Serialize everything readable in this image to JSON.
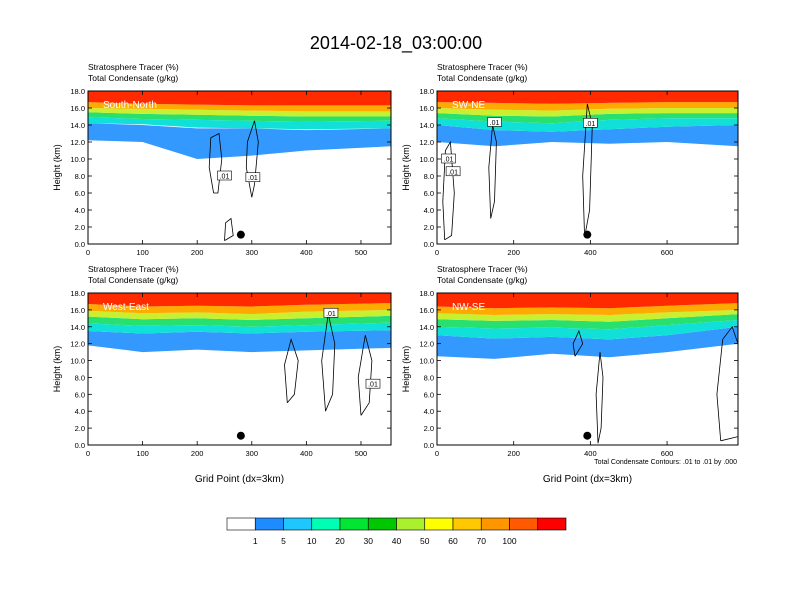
{
  "figure": {
    "title": "2014-02-18_03:00:00",
    "footnote": "Total Condensate Contours: .01 to .01 by .000",
    "ylabel": "Height (km)",
    "xlabel": "Grid Point (dx=3km)"
  },
  "chart_data": [
    {
      "type": "heatmap",
      "panel": "South-North",
      "subtitle_1": "Stratosphere Tracer   (%)",
      "subtitle_2": "Total Condensate   (g/kg)",
      "ylabel": "Height (km)",
      "xlabel": "",
      "xlim": [
        0,
        555
      ],
      "ylim": [
        0,
        18
      ],
      "xticks": [
        0,
        100,
        200,
        300,
        400,
        500
      ],
      "yticks": [
        "0.0",
        "2.0",
        "4.0",
        "6.0",
        "8.0",
        "10.0",
        "12.0",
        "14.0",
        "16.0",
        "18.0"
      ],
      "tracer_layers": [
        {
          "level": 1,
          "x": [
            0,
            100,
            200,
            300,
            400,
            555
          ],
          "bottom": [
            12.2,
            12.0,
            10.0,
            10.4,
            11.0,
            11.5
          ],
          "top": [
            14.2,
            14.0,
            13.6,
            13.6,
            13.4,
            13.6
          ]
        },
        {
          "level": 10,
          "x": [
            0,
            100,
            200,
            300,
            400,
            555
          ],
          "bottom": [
            14.2,
            14.1,
            13.7,
            13.6,
            13.5,
            13.6
          ],
          "top": [
            14.9,
            14.7,
            14.6,
            14.5,
            14.4,
            14.5
          ]
        },
        {
          "level": 30,
          "x": [
            0,
            100,
            200,
            300,
            400,
            555
          ],
          "bottom": [
            14.9,
            14.7,
            14.6,
            14.5,
            14.4,
            14.5
          ],
          "top": [
            15.5,
            15.3,
            15.2,
            15.1,
            15.0,
            15.0
          ]
        },
        {
          "level": 50,
          "x": [
            0,
            100,
            200,
            300,
            400,
            555
          ],
          "bottom": [
            15.5,
            15.3,
            15.2,
            15.1,
            15.0,
            15.0
          ],
          "top": [
            16.0,
            15.9,
            15.8,
            15.7,
            15.6,
            15.6
          ]
        },
        {
          "level": 70,
          "x": [
            0,
            100,
            200,
            300,
            400,
            555
          ],
          "bottom": [
            16.0,
            15.9,
            15.8,
            15.7,
            15.6,
            15.6
          ],
          "top": [
            16.7,
            16.5,
            16.4,
            16.3,
            16.3,
            16.3
          ]
        },
        {
          "level": 100,
          "x": [
            0,
            100,
            200,
            300,
            400,
            555
          ],
          "bottom": [
            16.7,
            16.5,
            16.4,
            16.3,
            16.3,
            16.3
          ],
          "top": [
            18.0,
            18.0,
            18.0,
            18.0,
            18.0,
            18.0
          ]
        }
      ],
      "condensate_contours": [
        [
          [
            230,
            6.0
          ],
          [
            222,
            9.0
          ],
          [
            225,
            12.5
          ],
          [
            240,
            13.0
          ],
          [
            245,
            10.0
          ],
          [
            238,
            6.0
          ],
          [
            230,
            6.0
          ]
        ],
        [
          [
            300,
            5.5
          ],
          [
            290,
            9.0
          ],
          [
            292,
            12.0
          ],
          [
            305,
            14.5
          ],
          [
            312,
            12.0
          ],
          [
            305,
            7.0
          ],
          [
            300,
            5.5
          ]
        ],
        [
          [
            250,
            0.4
          ],
          [
            252,
            2.5
          ],
          [
            262,
            3.0
          ],
          [
            266,
            1.0
          ],
          [
            250,
            0.4
          ]
        ]
      ],
      "contour_labels": [
        {
          "x": 250,
          "y": 8.0,
          "text": ".01"
        },
        {
          "x": 302,
          "y": 7.8,
          "text": ".01"
        }
      ],
      "marker": {
        "x": 280,
        "y": 1.1
      }
    },
    {
      "type": "heatmap",
      "panel": "SW-NE",
      "subtitle_1": "Stratosphere Tracer   (%)",
      "subtitle_2": "Total Condensate   (g/kg)",
      "ylabel": "Height (km)",
      "xlabel": "",
      "xlim": [
        0,
        785
      ],
      "ylim": [
        0,
        18
      ],
      "xticks": [
        0,
        200,
        400,
        600
      ],
      "yticks": [
        "0.0",
        "2.0",
        "4.0",
        "6.0",
        "8.0",
        "10.0",
        "12.0",
        "14.0",
        "16.0",
        "18.0"
      ],
      "tracer_layers": [
        {
          "level": 1,
          "x": [
            0,
            150,
            300,
            450,
            600,
            785
          ],
          "bottom": [
            12.0,
            11.5,
            12.0,
            11.8,
            12.0,
            11.5
          ],
          "top": [
            14.0,
            13.4,
            13.2,
            13.5,
            13.8,
            14.0
          ]
        },
        {
          "level": 10,
          "x": [
            0,
            150,
            300,
            450,
            600,
            785
          ],
          "bottom": [
            14.0,
            13.4,
            13.2,
            13.5,
            13.8,
            14.0
          ],
          "top": [
            14.8,
            14.4,
            14.2,
            14.6,
            14.8,
            14.8
          ]
        },
        {
          "level": 30,
          "x": [
            0,
            150,
            300,
            450,
            600,
            785
          ],
          "bottom": [
            14.8,
            14.4,
            14.2,
            14.6,
            14.8,
            14.8
          ],
          "top": [
            15.4,
            15.1,
            15.0,
            15.3,
            15.4,
            15.4
          ]
        },
        {
          "level": 50,
          "x": [
            0,
            150,
            300,
            450,
            600,
            785
          ],
          "bottom": [
            15.4,
            15.1,
            15.0,
            15.3,
            15.4,
            15.4
          ],
          "top": [
            16.0,
            15.8,
            15.7,
            15.9,
            16.0,
            16.0
          ]
        },
        {
          "level": 70,
          "x": [
            0,
            150,
            300,
            450,
            600,
            785
          ],
          "bottom": [
            16.0,
            15.8,
            15.7,
            15.9,
            16.0,
            16.0
          ],
          "top": [
            16.7,
            16.6,
            16.5,
            16.6,
            16.7,
            16.7
          ]
        },
        {
          "level": 100,
          "x": [
            0,
            150,
            300,
            450,
            600,
            785
          ],
          "bottom": [
            16.7,
            16.6,
            16.5,
            16.6,
            16.7,
            16.7
          ],
          "top": [
            18.0,
            18.0,
            18.0,
            18.0,
            18.0,
            18.0
          ]
        }
      ],
      "condensate_contours": [
        [
          [
            20,
            0.5
          ],
          [
            15,
            5.0
          ],
          [
            22,
            11.0
          ],
          [
            35,
            12.0
          ],
          [
            45,
            6.0
          ],
          [
            38,
            1.0
          ],
          [
            20,
            0.5
          ]
        ],
        [
          [
            140,
            3.0
          ],
          [
            135,
            9.0
          ],
          [
            145,
            14.0
          ],
          [
            155,
            12.0
          ],
          [
            150,
            5.0
          ],
          [
            140,
            3.0
          ]
        ],
        [
          [
            385,
            0.8
          ],
          [
            380,
            8.0
          ],
          [
            392,
            16.5
          ],
          [
            405,
            14.0
          ],
          [
            398,
            4.0
          ],
          [
            385,
            0.8
          ]
        ]
      ],
      "contour_labels": [
        {
          "x": 30,
          "y": 10.0,
          "text": ".01"
        },
        {
          "x": 42,
          "y": 8.5,
          "text": ".01"
        },
        {
          "x": 150,
          "y": 14.3,
          "text": ".01"
        },
        {
          "x": 400,
          "y": 14.2,
          "text": ".01"
        }
      ],
      "marker": {
        "x": 392,
        "y": 1.1
      }
    },
    {
      "type": "heatmap",
      "panel": "West-East",
      "subtitle_1": "Stratosphere Tracer   (%)",
      "subtitle_2": "Total Condensate   (g/kg)",
      "ylabel": "Height (km)",
      "xlabel": "Grid Point (dx=3km)",
      "xlim": [
        0,
        555
      ],
      "ylim": [
        0,
        18
      ],
      "xticks": [
        0,
        100,
        200,
        300,
        400,
        500
      ],
      "yticks": [
        "0.0",
        "2.0",
        "4.0",
        "6.0",
        "8.0",
        "10.0",
        "12.0",
        "14.0",
        "16.0",
        "18.0"
      ],
      "tracer_layers": [
        {
          "level": 1,
          "x": [
            0,
            100,
            200,
            300,
            400,
            555
          ],
          "bottom": [
            11.8,
            11.0,
            11.3,
            11.0,
            11.2,
            11.5
          ],
          "top": [
            13.5,
            13.2,
            13.4,
            13.2,
            13.4,
            13.6
          ]
        },
        {
          "level": 10,
          "x": [
            0,
            100,
            200,
            300,
            400,
            555
          ],
          "bottom": [
            13.5,
            13.2,
            13.4,
            13.2,
            13.4,
            13.6
          ],
          "top": [
            14.4,
            14.1,
            14.2,
            14.0,
            14.2,
            14.5
          ]
        },
        {
          "level": 30,
          "x": [
            0,
            100,
            200,
            300,
            400,
            555
          ],
          "bottom": [
            14.4,
            14.1,
            14.2,
            14.0,
            14.2,
            14.5
          ],
          "top": [
            15.2,
            14.9,
            15.0,
            14.8,
            15.0,
            15.3
          ]
        },
        {
          "level": 50,
          "x": [
            0,
            100,
            200,
            300,
            400,
            555
          ],
          "bottom": [
            15.2,
            14.9,
            15.0,
            14.8,
            15.0,
            15.3
          ],
          "top": [
            15.9,
            15.6,
            15.7,
            15.5,
            15.8,
            16.0
          ]
        },
        {
          "level": 70,
          "x": [
            0,
            100,
            200,
            300,
            400,
            555
          ],
          "bottom": [
            15.9,
            15.6,
            15.7,
            15.5,
            15.8,
            16.0
          ],
          "top": [
            16.7,
            16.4,
            16.5,
            16.4,
            16.6,
            16.8
          ]
        },
        {
          "level": 100,
          "x": [
            0,
            100,
            200,
            300,
            400,
            555
          ],
          "bottom": [
            16.7,
            16.4,
            16.5,
            16.4,
            16.6,
            16.8
          ],
          "top": [
            18.0,
            18.0,
            18.0,
            18.0,
            18.0,
            18.0
          ]
        }
      ],
      "condensate_contours": [
        [
          [
            365,
            5.0
          ],
          [
            360,
            9.5
          ],
          [
            372,
            12.5
          ],
          [
            385,
            10.0
          ],
          [
            378,
            6.0
          ],
          [
            365,
            5.0
          ]
        ],
        [
          [
            435,
            4.0
          ],
          [
            428,
            10.0
          ],
          [
            440,
            15.5
          ],
          [
            452,
            12.0
          ],
          [
            448,
            6.0
          ],
          [
            435,
            4.0
          ]
        ],
        [
          [
            500,
            3.5
          ],
          [
            495,
            8.0
          ],
          [
            508,
            13.0
          ],
          [
            520,
            10.0
          ],
          [
            515,
            5.0
          ],
          [
            500,
            3.5
          ]
        ]
      ],
      "contour_labels": [
        {
          "x": 445,
          "y": 15.6,
          "text": ".01"
        },
        {
          "x": 522,
          "y": 7.2,
          "text": ".01"
        }
      ],
      "marker": {
        "x": 280,
        "y": 1.1
      }
    },
    {
      "type": "heatmap",
      "panel": "NW-SE",
      "subtitle_1": "Stratosphere Tracer   (%)",
      "subtitle_2": "Total Condensate   (g/kg)",
      "ylabel": "Height (km)",
      "xlabel": "Grid Point (dx=3km)",
      "xlim": [
        0,
        785
      ],
      "ylim": [
        0,
        18
      ],
      "xticks": [
        0,
        200,
        400,
        600
      ],
      "yticks": [
        "0.0",
        "2.0",
        "4.0",
        "6.0",
        "8.0",
        "10.0",
        "12.0",
        "14.0",
        "16.0",
        "18.0"
      ],
      "tracer_layers": [
        {
          "level": 1,
          "x": [
            0,
            150,
            300,
            450,
            600,
            785
          ],
          "bottom": [
            10.5,
            10.2,
            10.8,
            10.4,
            11.0,
            12.0
          ],
          "top": [
            13.0,
            12.6,
            12.8,
            12.5,
            13.0,
            14.0
          ]
        },
        {
          "level": 10,
          "x": [
            0,
            150,
            300,
            450,
            600,
            785
          ],
          "bottom": [
            13.0,
            12.6,
            12.8,
            12.5,
            13.0,
            14.0
          ],
          "top": [
            14.0,
            13.8,
            13.9,
            13.7,
            14.2,
            14.8
          ]
        },
        {
          "level": 30,
          "x": [
            0,
            150,
            300,
            450,
            600,
            785
          ],
          "bottom": [
            14.0,
            13.8,
            13.9,
            13.7,
            14.2,
            14.8
          ],
          "top": [
            14.9,
            14.7,
            14.8,
            14.6,
            15.0,
            15.5
          ]
        },
        {
          "level": 50,
          "x": [
            0,
            150,
            300,
            450,
            600,
            785
          ],
          "bottom": [
            14.9,
            14.7,
            14.8,
            14.6,
            15.0,
            15.5
          ],
          "top": [
            15.6,
            15.4,
            15.5,
            15.4,
            15.7,
            16.0
          ]
        },
        {
          "level": 70,
          "x": [
            0,
            150,
            300,
            450,
            600,
            785
          ],
          "bottom": [
            15.6,
            15.4,
            15.5,
            15.4,
            15.7,
            16.0
          ],
          "top": [
            16.4,
            16.2,
            16.3,
            16.2,
            16.5,
            16.8
          ]
        },
        {
          "level": 100,
          "x": [
            0,
            150,
            300,
            450,
            600,
            785
          ],
          "bottom": [
            16.4,
            16.2,
            16.3,
            16.2,
            16.5,
            16.8
          ],
          "top": [
            18.0,
            18.0,
            18.0,
            18.0,
            18.0,
            18.0
          ]
        }
      ],
      "condensate_contours": [
        [
          [
            360,
            10.5
          ],
          [
            355,
            12.0
          ],
          [
            370,
            13.5
          ],
          [
            380,
            12.0
          ],
          [
            360,
            10.5
          ]
        ],
        [
          [
            420,
            0.2
          ],
          [
            415,
            6.0
          ],
          [
            425,
            11.0
          ],
          [
            433,
            8.0
          ],
          [
            428,
            2.0
          ],
          [
            420,
            0.2
          ]
        ],
        [
          [
            740,
            0.5
          ],
          [
            730,
            6.0
          ],
          [
            745,
            12.5
          ],
          [
            770,
            14.0
          ],
          [
            785,
            12.0
          ],
          [
            785,
            1.0
          ],
          [
            740,
            0.5
          ]
        ]
      ],
      "contour_labels": [],
      "marker": {
        "x": 392,
        "y": 1.1
      }
    }
  ],
  "colorbar": {
    "levels": [
      "1",
      "5",
      "10",
      "20",
      "30",
      "40",
      "50",
      "60",
      "70",
      "100"
    ],
    "colors": [
      "#ffffff",
      "#1e8cff",
      "#1ec8ff",
      "#00ffb4",
      "#00e632",
      "#00c800",
      "#aaf02d",
      "#ffff00",
      "#ffc800",
      "#ff9600",
      "#ff5a00",
      "#ff0000"
    ]
  },
  "colors": {
    "l1": "#3399ff",
    "l10": "#11e0d8",
    "l30": "#27e070",
    "l50": "#c8f030",
    "l70": "#ffaa00",
    "l100": "#ff2a00",
    "contour": "#000000",
    "panel_label": "#ffffff"
  }
}
